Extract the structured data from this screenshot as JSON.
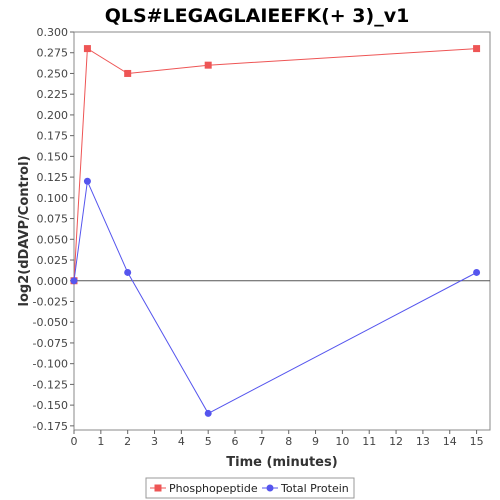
{
  "chart_data": {
    "type": "line",
    "title": "QLS#LEGAGLAIEEFK(+ 3)_v1",
    "xlabel": "Time (minutes)",
    "ylabel": "log2(dDAVP/Control)",
    "xlim": [
      0,
      15.5
    ],
    "ylim": [
      -0.18,
      0.3
    ],
    "x_ticks": [
      "0",
      "1",
      "2",
      "3",
      "4",
      "5",
      "6",
      "7",
      "8",
      "9",
      "10",
      "11",
      "12",
      "13",
      "14",
      "15"
    ],
    "y_ticks": [
      "-0.175",
      "-0.150",
      "-0.125",
      "-0.100",
      "-0.075",
      "-0.050",
      "-0.025",
      "0.000",
      "0.025",
      "0.050",
      "0.075",
      "0.100",
      "0.125",
      "0.150",
      "0.175",
      "0.200",
      "0.225",
      "0.250",
      "0.275",
      "0.300"
    ],
    "grid": false,
    "legend_position": "bottom",
    "series": [
      {
        "name": "Phosphopeptide",
        "color": "#ee5555",
        "marker": "square",
        "x": [
          0,
          0.5,
          2,
          5,
          15
        ],
        "y": [
          0.0,
          0.28,
          0.25,
          0.26,
          0.28
        ]
      },
      {
        "name": "Total Protein",
        "color": "#5555ee",
        "marker": "circle",
        "x": [
          0,
          0.5,
          2,
          5,
          15
        ],
        "y": [
          0.0,
          0.12,
          0.01,
          -0.16,
          0.01
        ]
      }
    ]
  }
}
